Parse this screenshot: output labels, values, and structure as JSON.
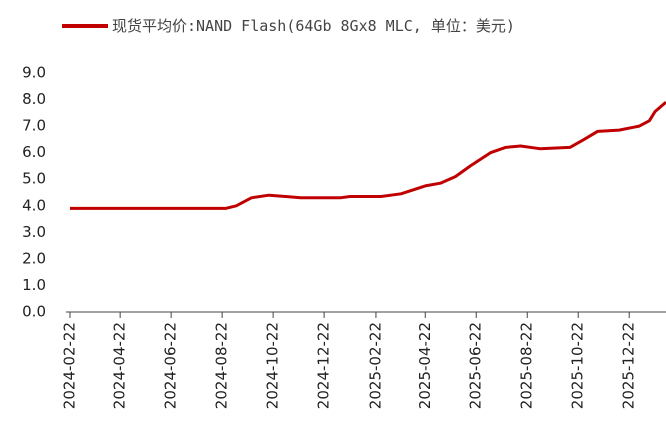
{
  "chart_data": {
    "type": "line",
    "x": [
      "2024-02-22",
      "2024-08-26",
      "2024-09-08",
      "2024-09-26",
      "2024-10-17",
      "2024-11-06",
      "2024-11-24",
      "2025-01-10",
      "2025-01-22",
      "2025-02-28",
      "2025-03-24",
      "2025-04-22",
      "2025-05-10",
      "2025-05-28",
      "2025-06-15",
      "2025-07-09",
      "2025-07-27",
      "2025-08-14",
      "2025-09-06",
      "2025-10-12",
      "2025-10-29",
      "2025-11-14",
      "2025-12-10",
      "2026-01-03",
      "2026-01-15",
      "2026-01-22",
      "2026-02-04"
    ],
    "series": [
      {
        "name": "现货平均价:NAND Flash(64Gb 8Gx8 MLC, 单位：美元)",
        "color": "#c00000",
        "values": [
          3.9,
          3.9,
          4.0,
          4.3,
          4.4,
          4.35,
          4.3,
          4.3,
          4.35,
          4.35,
          4.45,
          4.75,
          4.85,
          5.1,
          5.5,
          6.0,
          6.2,
          6.25,
          6.15,
          6.2,
          6.5,
          6.8,
          6.85,
          7.0,
          7.2,
          7.55,
          7.9
        ]
      }
    ],
    "xlim": [
      "2024-02-22",
      "2026-02-04"
    ],
    "xticks": [
      "2024-02-22",
      "2024-04-22",
      "2024-06-22",
      "2024-08-22",
      "2024-10-22",
      "2024-12-22",
      "2025-02-22",
      "2025-04-22",
      "2025-06-22",
      "2025-08-22",
      "2025-10-22",
      "2025-12-22"
    ],
    "ylim": [
      0,
      9
    ],
    "yticks": [
      {
        "value": 0,
        "label": "0.0"
      },
      {
        "value": 1,
        "label": "1.0"
      },
      {
        "value": 2,
        "label": "2.0"
      },
      {
        "value": 3,
        "label": "3.0"
      },
      {
        "value": 4,
        "label": "4.0"
      },
      {
        "value": 5,
        "label": "5.0"
      },
      {
        "value": 6,
        "label": "6.0"
      },
      {
        "value": 7,
        "label": "7.0"
      },
      {
        "value": 8,
        "label": "8.0"
      },
      {
        "value": 9,
        "label": "9.0"
      }
    ]
  }
}
